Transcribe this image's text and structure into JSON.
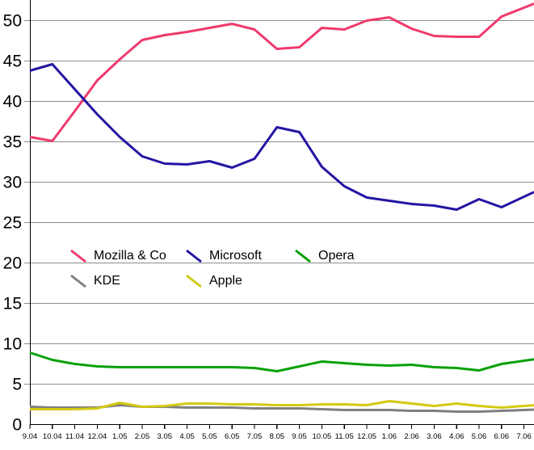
{
  "chart_data": {
    "type": "line",
    "x_labels": [
      "9.04",
      "10.04",
      "11.04",
      "12.04",
      "1.05",
      "2.05",
      "3.05",
      "4.05",
      "5.05",
      "6.05",
      "7.05",
      "8.05",
      "9.05",
      "10.05",
      "11.05",
      "12.05",
      "1.06",
      "2.06",
      "3.06",
      "4.06",
      "5.06",
      "6.06",
      "7.06"
    ],
    "y_ticks": [
      0,
      5,
      10,
      15,
      20,
      25,
      30,
      35,
      40,
      45,
      50
    ],
    "ylim": [
      0,
      52.5
    ],
    "grid": "horizontal-only",
    "gridline_color": "#8c8c8c",
    "axis_color": "#000000",
    "background_color": "#ffffff",
    "legend_position": "inside-plot-middle-left",
    "legend_rows": [
      [
        "Mozilla & Co",
        "Microsoft",
        "Opera"
      ],
      [
        "KDE",
        "Apple"
      ]
    ],
    "series": [
      {
        "name": "Mozilla & Co",
        "color": "#ee3a6c",
        "values": [
          35.6,
          35.1,
          38.8,
          42.6,
          45.2,
          47.6,
          48.2,
          48.6,
          49.1,
          49.6,
          48.9,
          46.5,
          46.7,
          49.1,
          48.9,
          50.0,
          50.4,
          49.0,
          48.1,
          48.0,
          48.0,
          50.5,
          51.6
        ]
      },
      {
        "name": "Microsoft",
        "color": "#2415a3",
        "values": [
          43.8,
          44.6,
          41.5,
          38.4,
          35.6,
          33.2,
          32.3,
          32.2,
          32.6,
          31.8,
          32.9,
          36.8,
          36.2,
          31.9,
          29.5,
          28.1,
          27.7,
          27.3,
          27.1,
          26.6,
          27.9,
          26.9,
          28.2
        ]
      },
      {
        "name": "Opera",
        "color": "#09a109",
        "values": [
          8.9,
          8.0,
          7.5,
          7.2,
          7.1,
          7.1,
          7.1,
          7.1,
          7.1,
          7.1,
          7.0,
          6.6,
          7.2,
          7.8,
          7.6,
          7.4,
          7.3,
          7.4,
          7.1,
          7.0,
          6.7,
          7.5,
          7.9
        ]
      },
      {
        "name": "KDE",
        "color": "#7f7f7f",
        "values": [
          2.2,
          2.1,
          2.1,
          2.1,
          2.4,
          2.2,
          2.2,
          2.1,
          2.1,
          2.1,
          2.0,
          2.0,
          2.0,
          1.9,
          1.8,
          1.8,
          1.8,
          1.7,
          1.7,
          1.6,
          1.6,
          1.7,
          1.8
        ]
      },
      {
        "name": "Apple",
        "color": "#d3ca12",
        "values": [
          1.9,
          1.9,
          1.9,
          2.0,
          2.7,
          2.2,
          2.3,
          2.6,
          2.6,
          2.5,
          2.5,
          2.4,
          2.4,
          2.5,
          2.5,
          2.4,
          2.9,
          2.6,
          2.3,
          2.6,
          2.3,
          2.1,
          2.3
        ]
      }
    ]
  }
}
